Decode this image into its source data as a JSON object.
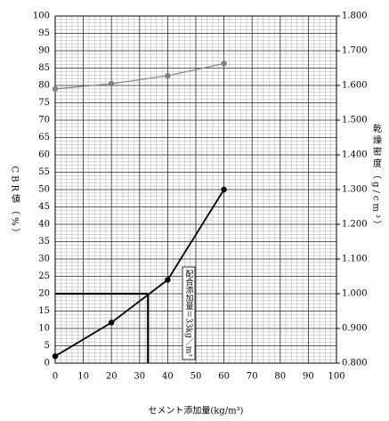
{
  "chart_data": {
    "type": "line",
    "x_label": "セメント添加量(kg/m³)",
    "y_label": "CBR値（%）",
    "y2_label": "乾燥密度（g/cm³）",
    "xlim": [
      0,
      100
    ],
    "xticks": [
      0,
      10,
      20,
      30,
      40,
      50,
      60,
      70,
      80,
      90,
      100
    ],
    "ylim": [
      0,
      100
    ],
    "yticks": [
      0,
      5,
      10,
      15,
      20,
      25,
      30,
      35,
      40,
      45,
      50,
      55,
      60,
      65,
      70,
      75,
      80,
      85,
      90,
      95,
      100
    ],
    "y2lim": [
      0.8,
      1.8
    ],
    "y2ticks": [
      {
        "value": 0.8,
        "label": "0.800"
      },
      {
        "value": 0.9,
        "label": "0.900"
      },
      {
        "value": 1.0,
        "label": "1.000"
      },
      {
        "value": 1.1,
        "label": "1.100"
      },
      {
        "value": 1.2,
        "label": "1.200"
      },
      {
        "value": 1.3,
        "label": "1.300"
      },
      {
        "value": 1.4,
        "label": "1.400"
      },
      {
        "value": 1.5,
        "label": "1.500"
      },
      {
        "value": 1.6,
        "label": "1.600"
      },
      {
        "value": 1.7,
        "label": "1.700"
      },
      {
        "value": 1.8,
        "label": "1.800"
      }
    ],
    "grid": true,
    "x": [
      0,
      20,
      40,
      60
    ],
    "series": [
      {
        "color": "#000000",
        "values": [
          2,
          11.7,
          24,
          50
        ]
      },
      {
        "color": "#808080",
        "axis": "y2",
        "values": [
          1.59,
          1.605,
          1.628,
          1.663
        ]
      }
    ],
    "annotation": {
      "text": "配合添加量＝33kg／m³",
      "x": 33,
      "y": 20
    }
  }
}
